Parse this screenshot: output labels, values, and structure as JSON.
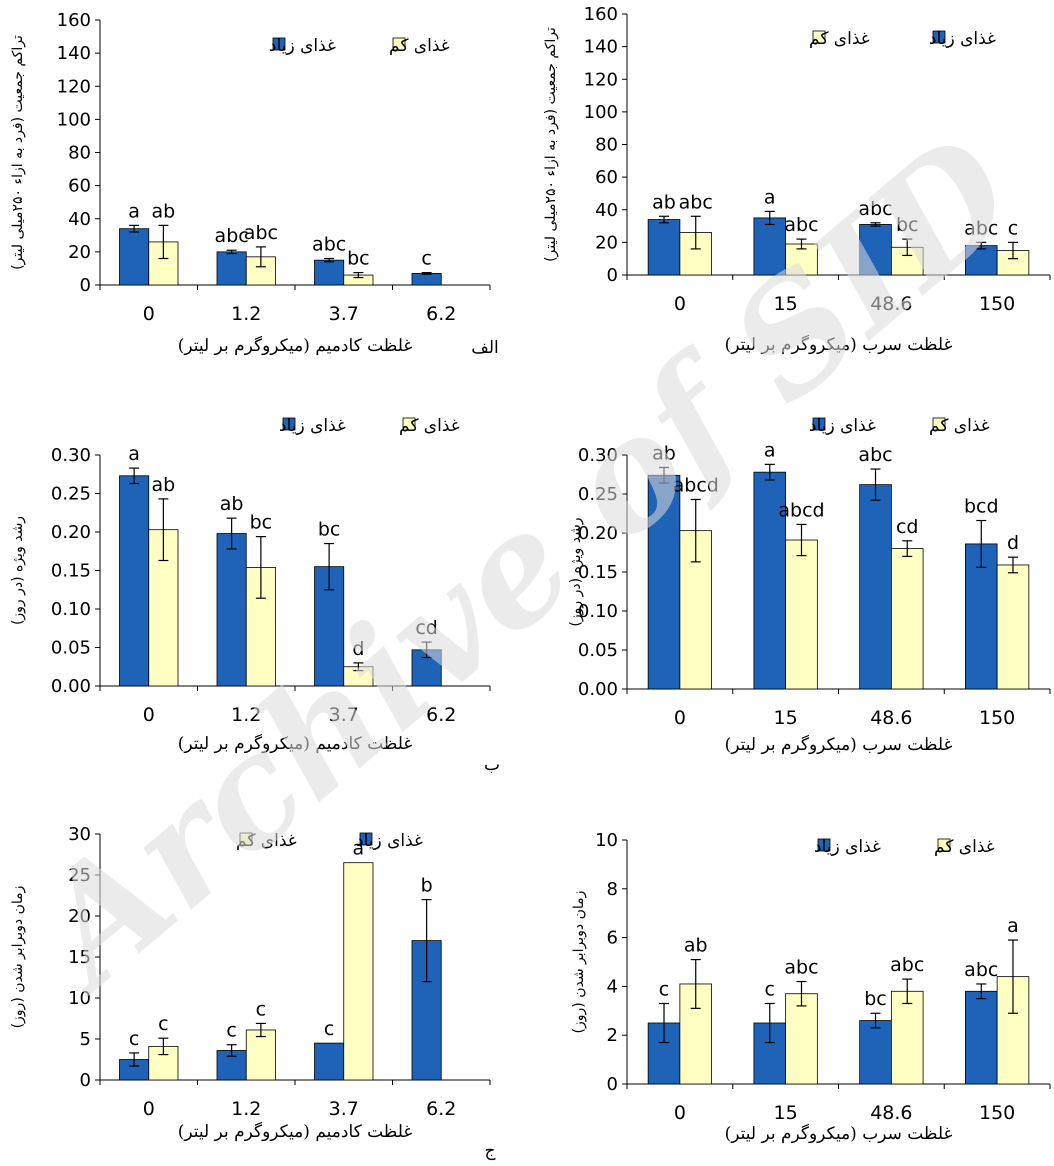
{
  "legend": {
    "high": "غذای زیاد",
    "low": "غذای کم"
  },
  "colors": {
    "high": "#1f63b8",
    "low": "#ffffc4",
    "axis": "#000000",
    "watermark": "#d9d9d9"
  },
  "watermark_text": "Archive of SID",
  "row_labels": [
    "الف",
    "ب",
    "ج"
  ],
  "xlabels": {
    "cadmium": "غلظت کادمیم (میکروگرم بر لیتر)",
    "lead": "غلظت سرب (میکروگرم بر لیتر)"
  },
  "ylabels": {
    "population": "تراکم جمعیت (فرد به ازاء ۲۵۰میلی لیتر)",
    "growth": "رشد ویژه (در روز)",
    "doubling": "زمان دوبرابر شدن (روز)"
  },
  "chart_data": [
    {
      "type": "bar",
      "panel": "cd-population",
      "categories": [
        "0",
        "1.2",
        "3.7",
        "6.2"
      ],
      "ylim": [
        0,
        160
      ],
      "yticks": [
        "0",
        "20",
        "40",
        "60",
        "80",
        "100",
        "120",
        "140",
        "160"
      ],
      "series": [
        {
          "name": "غذای زیاد",
          "values": [
            34,
            20,
            15,
            7
          ],
          "errors": [
            2,
            1,
            1,
            0.5
          ],
          "letters": [
            "a",
            "abc",
            "abc",
            "c"
          ]
        },
        {
          "name": "غذای کم",
          "values": [
            26,
            17,
            6,
            null
          ],
          "errors": [
            10,
            6,
            1.5,
            null
          ],
          "letters": [
            "ab",
            "abc",
            "bc",
            ""
          ]
        }
      ]
    },
    {
      "type": "bar",
      "panel": "pb-population",
      "categories": [
        "0",
        "15",
        "48.6",
        "150"
      ],
      "ylim": [
        0,
        160
      ],
      "yticks": [
        "0",
        "20",
        "40",
        "60",
        "80",
        "100",
        "120",
        "140",
        "160"
      ],
      "series": [
        {
          "name": "غذای زیاد",
          "values": [
            34,
            35,
            31,
            18
          ],
          "errors": [
            2,
            4,
            1,
            2
          ],
          "letters": [
            "ab",
            "a",
            "abc",
            "abc"
          ]
        },
        {
          "name": "غذای کم",
          "values": [
            26,
            19,
            17,
            15
          ],
          "errors": [
            10,
            3,
            5,
            5
          ],
          "letters": [
            "abc",
            "abc",
            "bc",
            "c"
          ]
        }
      ]
    },
    {
      "type": "bar",
      "panel": "cd-growth",
      "categories": [
        "0",
        "1.2",
        "3.7",
        "6.2"
      ],
      "ylim": [
        0,
        0.3
      ],
      "yticks": [
        "0.00",
        "0.05",
        "0.10",
        "0.15",
        "0.20",
        "0.25",
        "0.30"
      ],
      "series": [
        {
          "name": "غذای زیاد",
          "values": [
            0.273,
            0.198,
            0.155,
            0.047
          ],
          "errors": [
            0.01,
            0.02,
            0.03,
            0.01
          ],
          "letters": [
            "a",
            "ab",
            "bc",
            "cd"
          ]
        },
        {
          "name": "غذای کم",
          "values": [
            0.203,
            0.154,
            0.025,
            null
          ],
          "errors": [
            0.04,
            0.04,
            0.005,
            null
          ],
          "letters": [
            "ab",
            "bc",
            "d",
            ""
          ]
        }
      ]
    },
    {
      "type": "bar",
      "panel": "pb-growth",
      "categories": [
        "0",
        "15",
        "48.6",
        "150"
      ],
      "ylim": [
        0,
        0.3
      ],
      "yticks": [
        "0.00",
        "0.05",
        "0.10",
        "0.15",
        "0.20",
        "0.25",
        "0.30"
      ],
      "series": [
        {
          "name": "غذای زیاد",
          "values": [
            0.274,
            0.278,
            0.262,
            0.186
          ],
          "errors": [
            0.01,
            0.01,
            0.02,
            0.03
          ],
          "letters": [
            "ab",
            "a",
            "abc",
            "bcd"
          ]
        },
        {
          "name": "غذای کم",
          "values": [
            0.203,
            0.191,
            0.18,
            0.159
          ],
          "errors": [
            0.04,
            0.02,
            0.01,
            0.01
          ],
          "letters": [
            "abcd",
            "abcd",
            "cd",
            "d"
          ]
        }
      ]
    },
    {
      "type": "bar",
      "panel": "cd-doubling",
      "categories": [
        "0",
        "1.2",
        "3.7",
        "6.2"
      ],
      "ylim": [
        0,
        30
      ],
      "yticks": [
        "0",
        "5",
        "10",
        "15",
        "20",
        "25",
        "30"
      ],
      "series": [
        {
          "name": "غذای زیاد",
          "values": [
            2.5,
            3.6,
            4.5,
            17
          ],
          "errors": [
            0.8,
            0.7,
            0,
            5
          ],
          "letters": [
            "c",
            "c",
            "c",
            "b"
          ]
        },
        {
          "name": "غذای کم",
          "values": [
            4.1,
            6.1,
            26.5,
            null
          ],
          "errors": [
            1,
            0.8,
            0,
            null
          ],
          "letters": [
            "c",
            "c",
            "a",
            ""
          ]
        }
      ]
    },
    {
      "type": "bar",
      "panel": "pb-doubling",
      "categories": [
        "0",
        "15",
        "48.6",
        "150"
      ],
      "ylim": [
        0,
        10
      ],
      "yticks": [
        "0",
        "2",
        "4",
        "6",
        "8",
        "10"
      ],
      "series": [
        {
          "name": "غذای زیاد",
          "values": [
            2.5,
            2.5,
            2.6,
            3.8
          ],
          "errors": [
            0.8,
            0.8,
            0.3,
            0.3
          ],
          "letters": [
            "c",
            "c",
            "bc",
            "abc"
          ]
        },
        {
          "name": "غذای کم",
          "values": [
            4.1,
            3.7,
            3.8,
            4.4
          ],
          "errors": [
            1,
            0.5,
            0.5,
            1.5
          ],
          "letters": [
            "ab",
            "abc",
            "abc",
            "a"
          ]
        }
      ]
    }
  ]
}
